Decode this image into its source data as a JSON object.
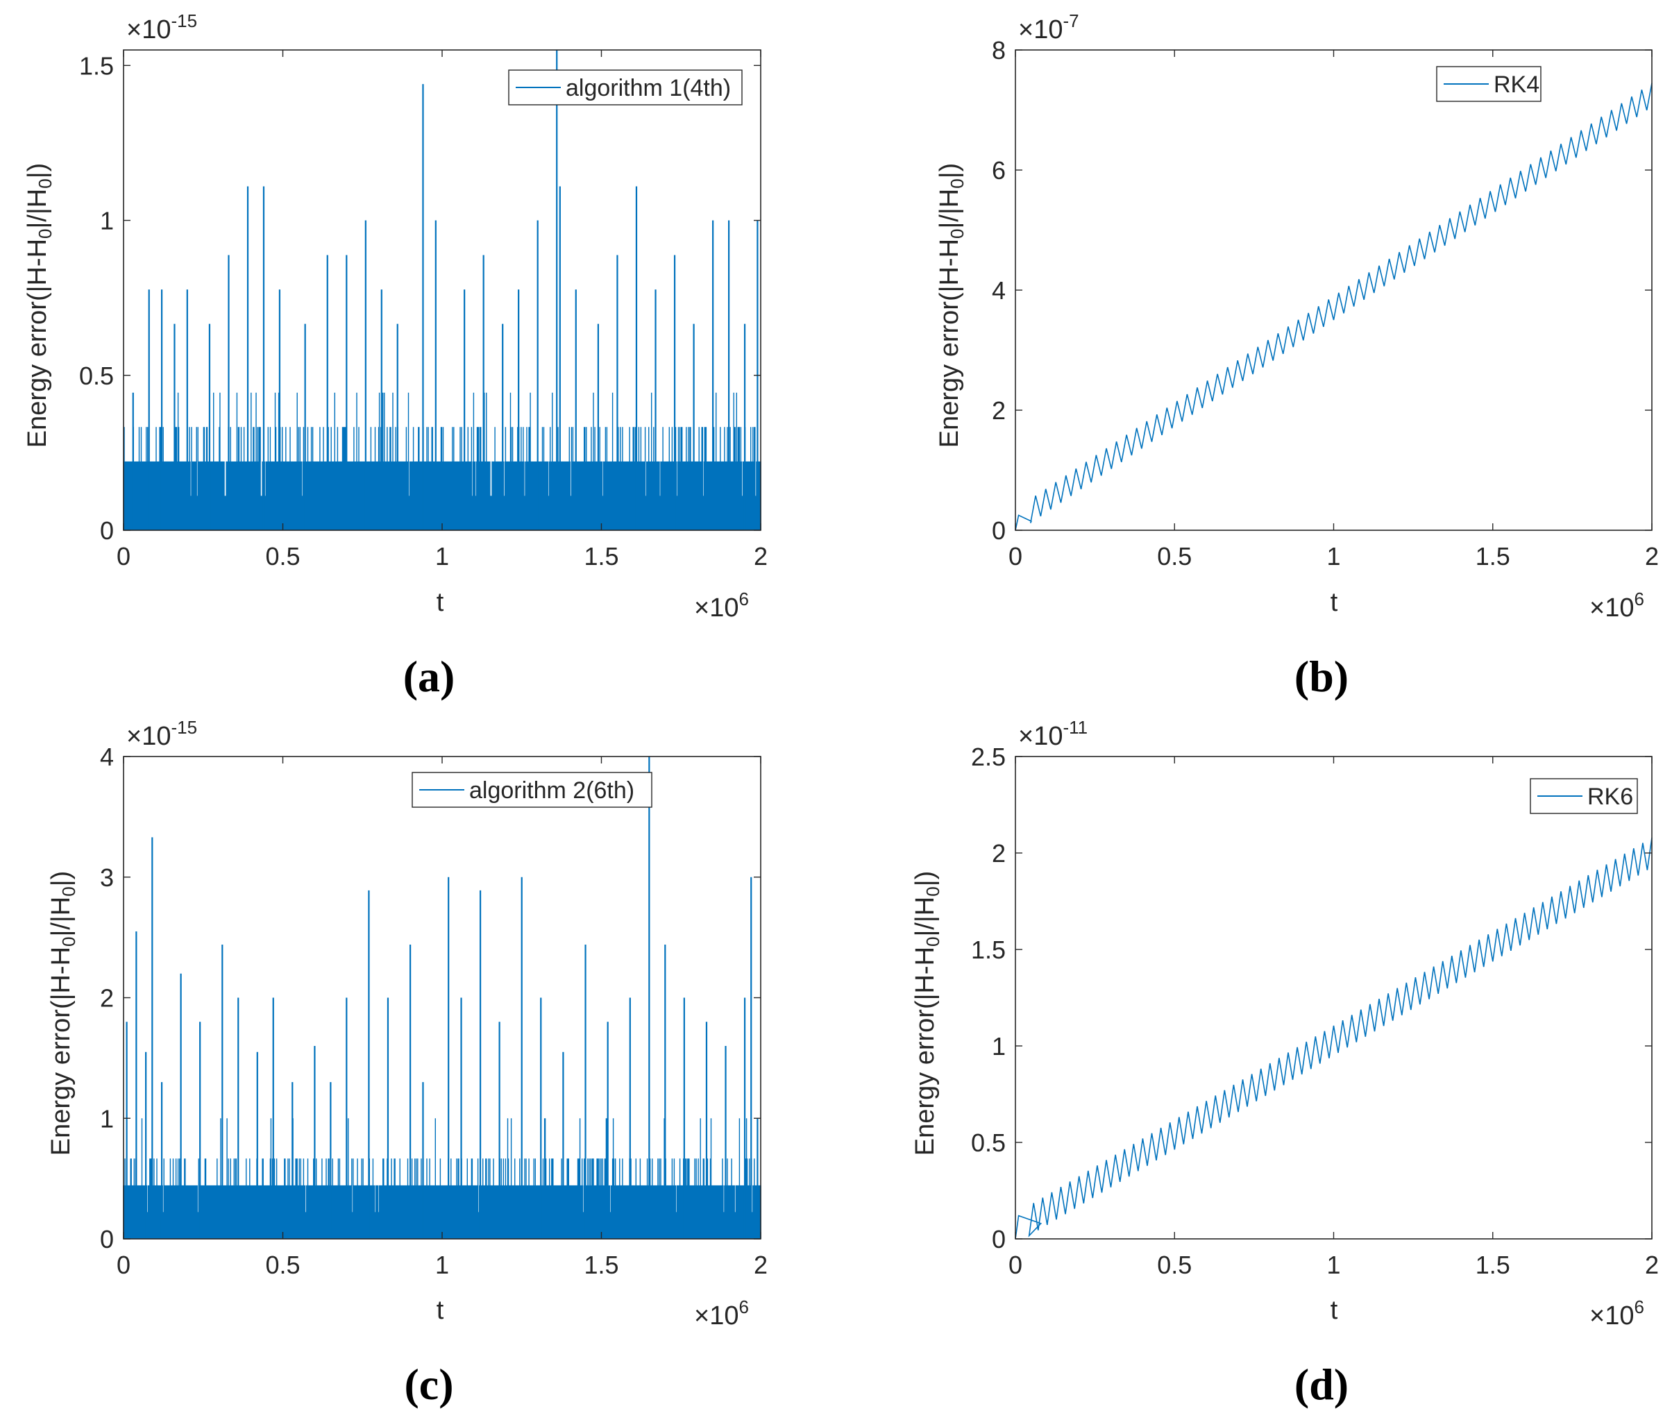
{
  "figure": {
    "panel_labels": [
      "(a)",
      "(b)",
      "(c)",
      "(d)"
    ]
  },
  "colors": {
    "series": "#0072BD",
    "axis": "#262626",
    "background": "#ffffff"
  },
  "chart_data": [
    {
      "type": "line",
      "panel": "(a)",
      "xlabel": "t",
      "ylabel": "Energy error(|H-H0|/|H0|)",
      "x_multiplier": "×10^6",
      "y_multiplier": "×10^-15",
      "xlim": [
        0,
        2
      ],
      "ylim": [
        0,
        1.55
      ],
      "xticks": [
        0,
        0.5,
        1,
        1.5,
        2
      ],
      "yticks": [
        0,
        0.5,
        1,
        1.5
      ],
      "legend": "top-right",
      "series": [
        {
          "name": "algorithm 1(4th)",
          "pattern": "noise",
          "levels": [
            0,
            0.111,
            0.222,
            0.333,
            0.444,
            0.666,
            0.777,
            0.888,
            1.0,
            1.11,
            1.44
          ],
          "dense_level": 0.222,
          "medium_level": 0.333,
          "spikes": [
            [
              0.03,
              0.444
            ],
            [
              0.08,
              0.777
            ],
            [
              0.12,
              0.777
            ],
            [
              0.16,
              0.666
            ],
            [
              0.2,
              0.777
            ],
            [
              0.27,
              0.666
            ],
            [
              0.33,
              0.888
            ],
            [
              0.39,
              1.11
            ],
            [
              0.44,
              1.11
            ],
            [
              0.49,
              0.777
            ],
            [
              0.57,
              0.666
            ],
            [
              0.64,
              0.888
            ],
            [
              0.7,
              0.888
            ],
            [
              0.76,
              1.0
            ],
            [
              0.81,
              0.777
            ],
            [
              0.86,
              0.666
            ],
            [
              0.94,
              1.44
            ],
            [
              0.98,
              1.0
            ],
            [
              1.07,
              0.777
            ],
            [
              1.13,
              0.888
            ],
            [
              1.19,
              0.666
            ],
            [
              1.24,
              0.777
            ],
            [
              1.3,
              1.0
            ],
            [
              1.36,
              1.55
            ],
            [
              1.37,
              1.11
            ],
            [
              1.42,
              0.777
            ],
            [
              1.49,
              0.666
            ],
            [
              1.55,
              0.888
            ],
            [
              1.61,
              1.11
            ],
            [
              1.67,
              0.777
            ],
            [
              1.73,
              0.888
            ],
            [
              1.79,
              0.666
            ],
            [
              1.85,
              1.0
            ],
            [
              1.9,
              1.0
            ],
            [
              1.95,
              0.666
            ],
            [
              1.99,
              1.0
            ]
          ]
        }
      ]
    },
    {
      "type": "line",
      "panel": "(b)",
      "xlabel": "t",
      "ylabel": "Energy error(|H-H0|/|H0|)",
      "x_multiplier": "×10^6",
      "y_multiplier": "×10^-7",
      "xlim": [
        0,
        2
      ],
      "ylim": [
        0,
        8
      ],
      "xticks": [
        0,
        0.5,
        1,
        1.5,
        2
      ],
      "yticks": [
        0,
        2,
        4,
        6,
        8
      ],
      "legend": "top-right",
      "series": [
        {
          "name": "RK4",
          "pattern": "sawtooth-ramp",
          "start": [
            0,
            0
          ],
          "end": [
            2,
            7.1
          ],
          "teeth": 63,
          "amplitude": 0.35,
          "initial_bump": [
            [
              0.01,
              0.25
            ],
            [
              0.05,
              0.15
            ]
          ]
        }
      ]
    },
    {
      "type": "line",
      "panel": "(c)",
      "xlabel": "t",
      "ylabel": "Energy error(|H-H0|/|H0|)",
      "x_multiplier": "×10^6",
      "y_multiplier": "×10^-15",
      "xlim": [
        0,
        2
      ],
      "ylim": [
        0,
        4
      ],
      "xticks": [
        0,
        0.5,
        1,
        1.5,
        2
      ],
      "yticks": [
        0,
        1,
        2,
        3,
        4
      ],
      "legend": "top-right",
      "series": [
        {
          "name": "algorithm 2(6th)",
          "pattern": "noise",
          "levels": [
            0,
            0.222,
            0.444,
            0.666,
            1.0,
            1.55,
            2.0,
            2.44,
            2.89,
            3.0,
            3.33,
            4.0
          ],
          "dense_level": 0.444,
          "medium_level": 0.666,
          "spikes": [
            [
              0.01,
              1.8
            ],
            [
              0.04,
              2.55
            ],
            [
              0.07,
              1.55
            ],
            [
              0.09,
              3.33
            ],
            [
              0.12,
              1.3
            ],
            [
              0.18,
              2.2
            ],
            [
              0.24,
              1.8
            ],
            [
              0.31,
              2.44
            ],
            [
              0.36,
              2.0
            ],
            [
              0.42,
              1.55
            ],
            [
              0.47,
              2.0
            ],
            [
              0.53,
              1.3
            ],
            [
              0.6,
              1.6
            ],
            [
              0.65,
              1.3
            ],
            [
              0.7,
              2.0
            ],
            [
              0.77,
              2.89
            ],
            [
              0.83,
              2.0
            ],
            [
              0.9,
              2.44
            ],
            [
              0.94,
              1.3
            ],
            [
              1.02,
              3.0
            ],
            [
              1.06,
              2.0
            ],
            [
              1.12,
              2.89
            ],
            [
              1.18,
              1.8
            ],
            [
              1.25,
              3.0
            ],
            [
              1.31,
              2.0
            ],
            [
              1.38,
              1.55
            ],
            [
              1.45,
              2.44
            ],
            [
              1.52,
              1.8
            ],
            [
              1.59,
              2.0
            ],
            [
              1.65,
              4.0
            ],
            [
              1.7,
              2.44
            ],
            [
              1.76,
              2.0
            ],
            [
              1.83,
              1.8
            ],
            [
              1.89,
              1.6
            ],
            [
              1.95,
              2.0
            ],
            [
              1.97,
              3.0
            ],
            [
              1.99,
              1.0
            ]
          ]
        }
      ]
    },
    {
      "type": "line",
      "panel": "(d)",
      "xlabel": "t",
      "ylabel": "Energy error(|H-H0|/|H0|)",
      "x_multiplier": "×10^6",
      "y_multiplier": "×10^-11",
      "xlim": [
        0,
        2
      ],
      "ylim": [
        0,
        2.5
      ],
      "xticks": [
        0,
        0.5,
        1,
        1.5,
        2
      ],
      "yticks": [
        0,
        0.5,
        1,
        1.5,
        2,
        2.5
      ],
      "legend": "top-right",
      "series": [
        {
          "name": "RK6",
          "pattern": "sawtooth-ramp",
          "start": [
            0,
            0
          ],
          "end": [
            2,
            1.95
          ],
          "teeth": 70,
          "amplitude": 0.13,
          "initial_bump": [
            [
              0.01,
              0.12
            ],
            [
              0.08,
              0.08
            ]
          ]
        }
      ]
    }
  ]
}
